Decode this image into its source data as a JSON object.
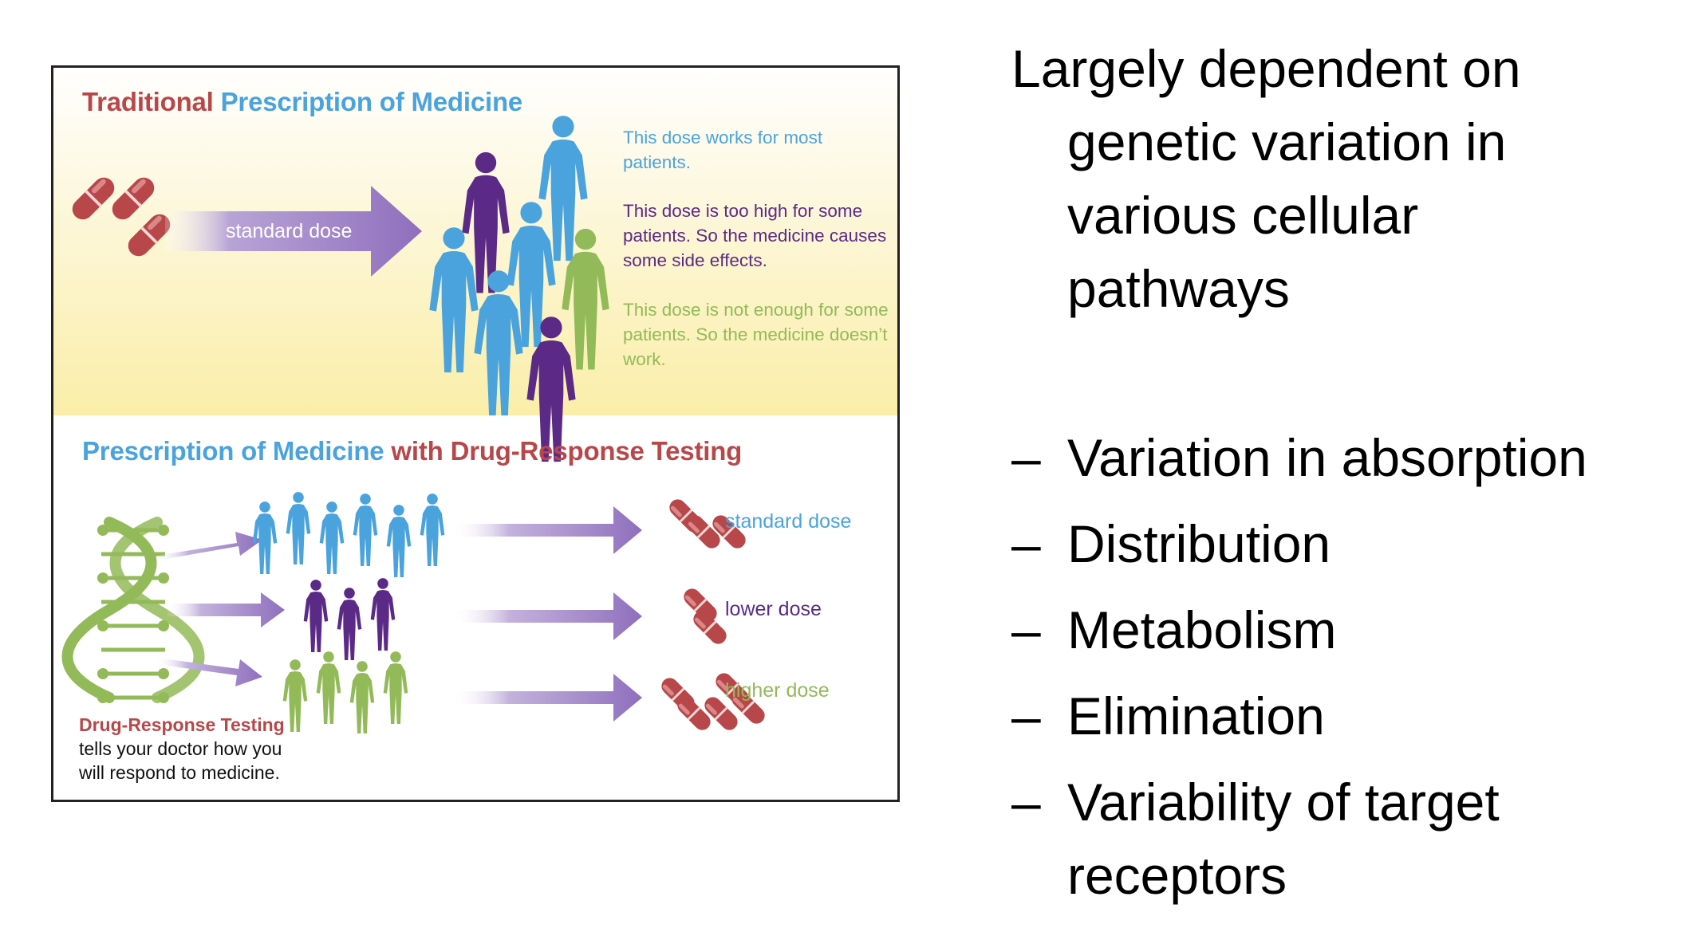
{
  "infographic": {
    "traditional": {
      "title_part1": "Traditional",
      "title_part2": "Prescription of Medicine",
      "arrow_label": "standard dose",
      "notes": [
        "This dose works for most patients.",
        "This dose is too high for some patients. So the medicine causes some side effects.",
        "This dose is not enough for some patients. So the medicine doesn’t work."
      ]
    },
    "testing": {
      "title_part1": "Prescription of Medicine",
      "title_part2": "with Drug-Response Testing",
      "doses": [
        "standard dose",
        "lower dose",
        "higher dose"
      ],
      "caption_title": "Drug-Response Testing",
      "caption_line1": "tells your doctor how you",
      "caption_line2": "will respond to medicine."
    },
    "colors": {
      "red": "#b8474a",
      "blue": "#4aa3dc",
      "purple": "#5b2a86",
      "green": "#93ba58",
      "arrow": "#9b7ec0",
      "band_yellow": "#fbf0b2"
    }
  },
  "text_panel": {
    "lead_line1": "Largely dependent on",
    "lead_rest": "genetic variation in various cellular pathways",
    "bullets": [
      "Variation in absorption",
      "Distribution",
      "Metabolism",
      "Elimination",
      "Variability of target receptors"
    ]
  }
}
